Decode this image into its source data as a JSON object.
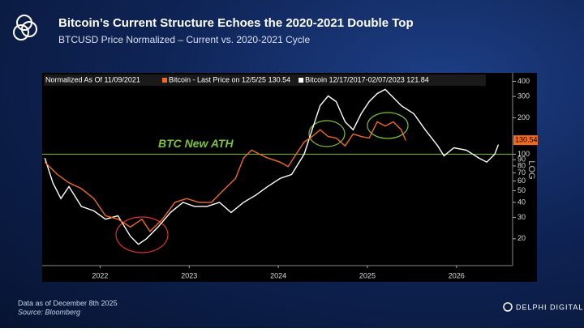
{
  "header": {
    "title": "Bitcoin’s Current Structure Echoes the 2020-2021 Double Top",
    "subtitle": "BTCUSD Price Normalized – Current vs. 2020-2021 Cycle"
  },
  "footer": {
    "note": "Data as of December 8th 2025",
    "source": "Source: Bloomberg",
    "brand": "DELPHI DIGITAL"
  },
  "chart_data": {
    "type": "line",
    "legend_note": "Normalized As Of 11/09/2021",
    "log_scale": true,
    "axis_label": "LOG",
    "xlim": [
      2021.85,
      2027.13
    ],
    "xticks": [
      {
        "value": 2022.5,
        "label": "2022"
      },
      {
        "value": 2023.5,
        "label": "2023"
      },
      {
        "value": 2024.5,
        "label": "2024"
      },
      {
        "value": 2025.5,
        "label": "2025"
      },
      {
        "value": 2026.5,
        "label": "2026"
      }
    ],
    "ylim": [
      12,
      470
    ],
    "yticks": [
      20,
      30,
      40,
      50,
      60,
      70,
      80,
      90,
      100,
      200,
      300,
      400
    ],
    "reference_line": {
      "value": 100,
      "label": "BTC New ATH",
      "color": "#7dc23a"
    },
    "last_price_marker": 130.54,
    "series": [
      {
        "name": "Bitcoin - Last Price on 12/5/25 130.54",
        "color": "#f26b1d",
        "x": [
          2021.88,
          2022.02,
          2022.15,
          2022.29,
          2022.43,
          2022.56,
          2022.7,
          2022.84,
          2022.97,
          2023.06,
          2023.2,
          2023.34,
          2023.47,
          2023.61,
          2023.75,
          2023.88,
          2024.02,
          2024.11,
          2024.2,
          2024.29,
          2024.38,
          2024.52,
          2024.61,
          2024.7,
          2024.79,
          2024.88,
          2024.97,
          2025.06,
          2025.15,
          2025.25,
          2025.34,
          2025.43,
          2025.52,
          2025.61,
          2025.7,
          2025.79,
          2025.88,
          2025.93
        ],
        "values": [
          86,
          68,
          58,
          52,
          43,
          31,
          29,
          25,
          29,
          23,
          29,
          40,
          43,
          40,
          40,
          50,
          63,
          93,
          108,
          100,
          93,
          86,
          79,
          100,
          126,
          140,
          159,
          140,
          136,
          117,
          147,
          140,
          136,
          185,
          171,
          185,
          159,
          130
        ]
      },
      {
        "name": "Bitcoin 12/17/2017-02/07/2023 121.84",
        "color": "#ffffff",
        "x": [
          2021.88,
          2021.97,
          2022.06,
          2022.15,
          2022.29,
          2022.43,
          2022.56,
          2022.7,
          2022.84,
          2022.93,
          2023.02,
          2023.15,
          2023.29,
          2023.43,
          2023.56,
          2023.7,
          2023.84,
          2023.97,
          2024.11,
          2024.25,
          2024.38,
          2024.52,
          2024.65,
          2024.79,
          2024.88,
          2024.97,
          2025.06,
          2025.15,
          2025.25,
          2025.34,
          2025.43,
          2025.52,
          2025.61,
          2025.7,
          2025.79,
          2025.88,
          2026.02,
          2026.15,
          2026.29,
          2026.36,
          2026.47,
          2026.61,
          2026.75,
          2026.84,
          2026.93,
          2026.97
        ],
        "values": [
          93,
          58,
          43,
          54,
          37,
          34,
          29,
          31,
          21,
          18,
          20,
          25,
          33,
          40,
          37,
          37,
          40,
          33,
          40,
          46,
          54,
          63,
          68,
          100,
          159,
          252,
          303,
          272,
          185,
          159,
          216,
          272,
          317,
          343,
          294,
          252,
          216,
          159,
          117,
          97,
          113,
          108,
          93,
          86,
          100,
          120
        ]
      }
    ]
  }
}
